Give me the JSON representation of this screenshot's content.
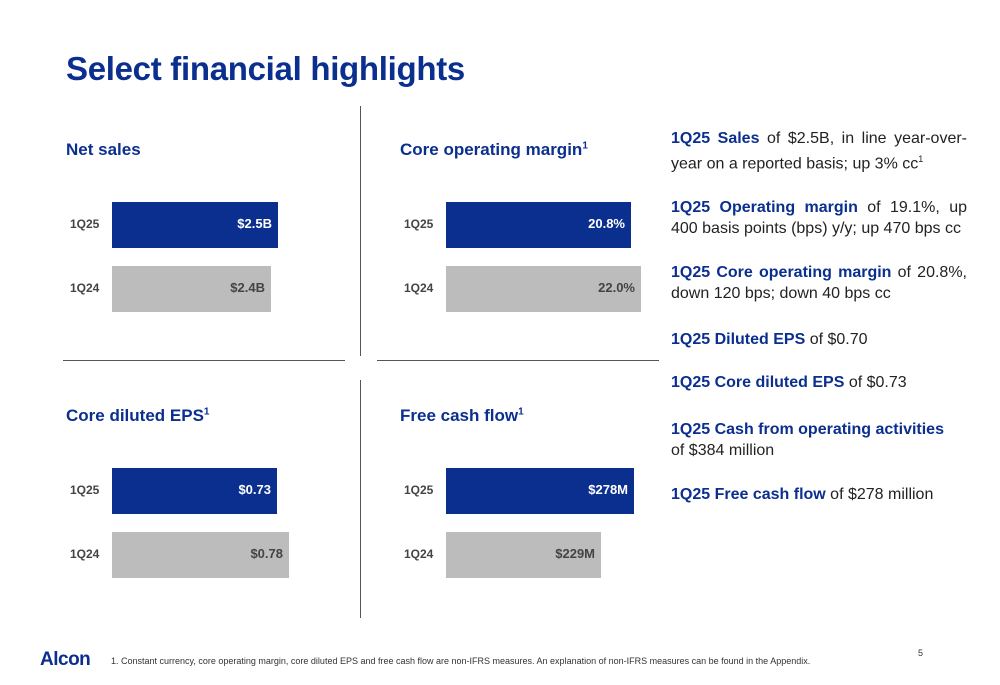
{
  "title": "Select financial highlights",
  "chart_data": [
    {
      "type": "bar",
      "title": "Net sales",
      "footnote_marker": "",
      "categories": [
        "1Q25",
        "1Q24"
      ],
      "values": [
        2.5,
        2.4
      ],
      "value_labels": [
        "$2.5B",
        "$2.4B"
      ],
      "unit": "B USD",
      "xlim": [
        0,
        3.1
      ],
      "colors": [
        "#0b2f8f",
        "#bcbcbc"
      ]
    },
    {
      "type": "bar",
      "title": "Core operating margin",
      "footnote_marker": "1",
      "categories": [
        "1Q25",
        "1Q24"
      ],
      "values": [
        20.8,
        22.0
      ],
      "value_labels": [
        "20.8%",
        "22.0%"
      ],
      "unit": "%",
      "xlim": [
        0,
        23.2
      ],
      "colors": [
        "#0b2f8f",
        "#bcbcbc"
      ]
    },
    {
      "type": "bar",
      "title": "Core diluted EPS",
      "footnote_marker": "1",
      "categories": [
        "1Q25",
        "1Q24"
      ],
      "values": [
        0.73,
        0.78
      ],
      "value_labels": [
        "$0.73",
        "$0.78"
      ],
      "unit": "USD",
      "xlim": [
        0,
        0.91
      ],
      "colors": [
        "#0b2f8f",
        "#bcbcbc"
      ]
    },
    {
      "type": "bar",
      "title": "Free cash flow",
      "footnote_marker": "1",
      "categories": [
        "1Q25",
        "1Q24"
      ],
      "values": [
        278,
        229
      ],
      "value_labels": [
        "$278M",
        "$229M"
      ],
      "unit": "M USD",
      "xlim": [
        0,
        304
      ],
      "colors": [
        "#0b2f8f",
        "#bcbcbc"
      ]
    }
  ],
  "highlights": [
    {
      "key": "1Q25 Sales",
      "text": " of $2.5B, in line year-over-year on a reported basis; up 3% cc",
      "sup": "1"
    },
    {
      "key": "1Q25 Operating margin",
      "text": " of 19.1%, up 400 basis points (bps) y/y; up 470 bps cc",
      "sup": ""
    },
    {
      "key": "1Q25 Core operating margin",
      "text": " of 20.8%, down 120 bps; down 40 bps cc",
      "sup": ""
    },
    {
      "key": "1Q25 Diluted EPS",
      "text": " of $0.70",
      "sup": ""
    },
    {
      "key": "1Q25 Core diluted EPS",
      "text": " of $0.73",
      "sup": ""
    },
    {
      "key": "1Q25 Cash from operating activities",
      "text": " of $384 million",
      "sup": ""
    },
    {
      "key": "1Q25 Free cash flow",
      "text": " of $278 million",
      "sup": ""
    }
  ],
  "footer": {
    "logo": "Alcon",
    "footnote": "1.  Constant currency, core operating margin, core diluted EPS and free cash flow are non-IFRS measures. An explanation of non-IFRS measures can be found in the Appendix.",
    "page_number": "5"
  }
}
